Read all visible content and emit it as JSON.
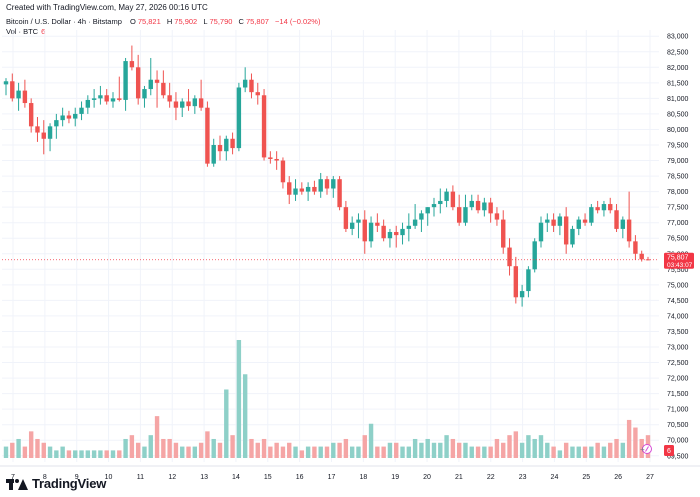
{
  "header": {
    "created_text": "Created with TradingView.com, May 27, 2026 00:16 UTC"
  },
  "legend": {
    "symbol_title": "Bitcoin / U.S. Dollar · 4h · Bitstamp",
    "ohlc": {
      "o_label": "O",
      "o_value": "75,821",
      "h_label": "H",
      "h_value": "75,902",
      "l_label": "L",
      "l_value": "75,790",
      "c_label": "C",
      "c_value": "75,807",
      "change": "−14 (−0.02%)"
    },
    "volume_label": "Vol · BTC",
    "volume_value": "6"
  },
  "brand": {
    "name": "TradingView"
  },
  "colors": {
    "up": "#26a69a",
    "down": "#ef5350",
    "vol_up": "#8ed0c8",
    "vol_down": "#f5a5a5",
    "grid": "#f0f3fa",
    "axis_text": "#131722",
    "price_tag_bg": "#f23645"
  },
  "chart_data": {
    "type": "candlestick",
    "x_tick_labels": [
      "7",
      "8",
      "9",
      "10",
      "11",
      "12",
      "13",
      "14",
      "15",
      "16",
      "17",
      "18",
      "19",
      "20",
      "21",
      "22",
      "23",
      "24",
      "25",
      "26",
      "27"
    ],
    "y_ticks": [
      83000,
      82500,
      82000,
      81500,
      81000,
      80500,
      80000,
      79500,
      79000,
      78500,
      78000,
      77500,
      77000,
      76500,
      76000,
      75500,
      75000,
      74500,
      74000,
      73500,
      73000,
      72500,
      72000,
      71500,
      71000,
      70500,
      70000,
      69500
    ],
    "y_tick_labels": [
      "83,000",
      "82,500",
      "82,000",
      "81,500",
      "81,000",
      "80,500",
      "80,000",
      "79,500",
      "79,000",
      "78,500",
      "78,000",
      "77,500",
      "77,000",
      "76,500",
      "76,000",
      "75,500",
      "75,000",
      "74,500",
      "74,000",
      "73,500",
      "73,000",
      "72,500",
      "72,000",
      "71,500",
      "71,000",
      "70,500",
      "70,000",
      "69,500"
    ],
    "ylim": [
      69300,
      83200
    ],
    "last_price": {
      "price": 75807,
      "label": "75,807",
      "countdown": "03:43:07"
    },
    "volume_last_label": "6",
    "candles": [
      {
        "o": 81450,
        "h": 81650,
        "l": 81100,
        "c": 81550,
        "v": 3
      },
      {
        "o": 81550,
        "h": 81800,
        "l": 80900,
        "c": 81000,
        "v": 4
      },
      {
        "o": 81000,
        "h": 81500,
        "l": 80600,
        "c": 81250,
        "v": 5
      },
      {
        "o": 81250,
        "h": 81600,
        "l": 80700,
        "c": 80850,
        "v": 3
      },
      {
        "o": 80850,
        "h": 81000,
        "l": 79900,
        "c": 80100,
        "v": 7
      },
      {
        "o": 80100,
        "h": 80400,
        "l": 79600,
        "c": 79900,
        "v": 5
      },
      {
        "o": 79900,
        "h": 80300,
        "l": 79200,
        "c": 79700,
        "v": 4
      },
      {
        "o": 79700,
        "h": 80200,
        "l": 79300,
        "c": 80100,
        "v": 3
      },
      {
        "o": 80100,
        "h": 80500,
        "l": 79700,
        "c": 80300,
        "v": 2
      },
      {
        "o": 80300,
        "h": 80700,
        "l": 80100,
        "c": 80450,
        "v": 3
      },
      {
        "o": 80450,
        "h": 80600,
        "l": 80200,
        "c": 80350,
        "v": 2
      },
      {
        "o": 80350,
        "h": 80700,
        "l": 80100,
        "c": 80500,
        "v": 2
      },
      {
        "o": 80500,
        "h": 80900,
        "l": 80300,
        "c": 80700,
        "v": 2
      },
      {
        "o": 80700,
        "h": 81100,
        "l": 80500,
        "c": 80950,
        "v": 2
      },
      {
        "o": 80950,
        "h": 81300,
        "l": 80700,
        "c": 81000,
        "v": 2
      },
      {
        "o": 81000,
        "h": 81400,
        "l": 80800,
        "c": 81100,
        "v": 2
      },
      {
        "o": 81100,
        "h": 81300,
        "l": 80800,
        "c": 80900,
        "v": 2
      },
      {
        "o": 80900,
        "h": 81200,
        "l": 80700,
        "c": 81000,
        "v": 2
      },
      {
        "o": 81000,
        "h": 81700,
        "l": 80900,
        "c": 80950,
        "v": 2
      },
      {
        "o": 80950,
        "h": 82300,
        "l": 80600,
        "c": 82200,
        "v": 5
      },
      {
        "o": 82200,
        "h": 82700,
        "l": 81900,
        "c": 82000,
        "v": 6
      },
      {
        "o": 82000,
        "h": 82400,
        "l": 80800,
        "c": 81000,
        "v": 4
      },
      {
        "o": 81000,
        "h": 81400,
        "l": 80700,
        "c": 81300,
        "v": 3
      },
      {
        "o": 81300,
        "h": 82300,
        "l": 81100,
        "c": 81600,
        "v": 6
      },
      {
        "o": 81600,
        "h": 81900,
        "l": 80700,
        "c": 81500,
        "v": 11
      },
      {
        "o": 81500,
        "h": 81900,
        "l": 81000,
        "c": 81100,
        "v": 5
      },
      {
        "o": 81100,
        "h": 81500,
        "l": 80700,
        "c": 80900,
        "v": 5
      },
      {
        "o": 80900,
        "h": 81200,
        "l": 80300,
        "c": 80700,
        "v": 4
      },
      {
        "o": 80700,
        "h": 81000,
        "l": 80400,
        "c": 80900,
        "v": 3
      },
      {
        "o": 80900,
        "h": 81300,
        "l": 80600,
        "c": 80750,
        "v": 3
      },
      {
        "o": 80750,
        "h": 81100,
        "l": 80500,
        "c": 81000,
        "v": 3
      },
      {
        "o": 81000,
        "h": 81600,
        "l": 80600,
        "c": 80700,
        "v": 4
      },
      {
        "o": 80700,
        "h": 80900,
        "l": 78800,
        "c": 78900,
        "v": 7
      },
      {
        "o": 78900,
        "h": 79700,
        "l": 78800,
        "c": 79500,
        "v": 5
      },
      {
        "o": 79500,
        "h": 79800,
        "l": 79000,
        "c": 79300,
        "v": 4
      },
      {
        "o": 79300,
        "h": 79800,
        "l": 79000,
        "c": 79700,
        "v": 18
      },
      {
        "o": 79700,
        "h": 79900,
        "l": 79200,
        "c": 79400,
        "v": 6
      },
      {
        "o": 79400,
        "h": 81500,
        "l": 79300,
        "c": 81350,
        "v": 31
      },
      {
        "o": 81350,
        "h": 82000,
        "l": 81200,
        "c": 81600,
        "v": 22
      },
      {
        "o": 81600,
        "h": 81800,
        "l": 81000,
        "c": 81200,
        "v": 5
      },
      {
        "o": 81200,
        "h": 81500,
        "l": 80800,
        "c": 81100,
        "v": 4
      },
      {
        "o": 81100,
        "h": 81300,
        "l": 79000,
        "c": 79100,
        "v": 5
      },
      {
        "o": 79100,
        "h": 79300,
        "l": 78900,
        "c": 79050,
        "v": 3
      },
      {
        "o": 79050,
        "h": 79300,
        "l": 78700,
        "c": 79000,
        "v": 4
      },
      {
        "o": 79000,
        "h": 79100,
        "l": 78100,
        "c": 78300,
        "v": 3
      },
      {
        "o": 78300,
        "h": 78500,
        "l": 77600,
        "c": 77900,
        "v": 4
      },
      {
        "o": 77900,
        "h": 78400,
        "l": 77700,
        "c": 78100,
        "v": 3
      },
      {
        "o": 78100,
        "h": 78300,
        "l": 77900,
        "c": 78000,
        "v": 2
      },
      {
        "o": 78000,
        "h": 78300,
        "l": 77700,
        "c": 78150,
        "v": 3
      },
      {
        "o": 78150,
        "h": 78350,
        "l": 77900,
        "c": 78000,
        "v": 3
      },
      {
        "o": 78000,
        "h": 78600,
        "l": 77800,
        "c": 78400,
        "v": 3
      },
      {
        "o": 78400,
        "h": 78500,
        "l": 77900,
        "c": 78100,
        "v": 3
      },
      {
        "o": 78100,
        "h": 78500,
        "l": 77800,
        "c": 78400,
        "v": 4
      },
      {
        "o": 78400,
        "h": 78500,
        "l": 77400,
        "c": 77500,
        "v": 4
      },
      {
        "o": 77500,
        "h": 77700,
        "l": 76700,
        "c": 76800,
        "v": 5
      },
      {
        "o": 76800,
        "h": 77200,
        "l": 76600,
        "c": 77000,
        "v": 3
      },
      {
        "o": 77000,
        "h": 77300,
        "l": 76500,
        "c": 77100,
        "v": 3
      },
      {
        "o": 77100,
        "h": 77400,
        "l": 76000,
        "c": 76400,
        "v": 6
      },
      {
        "o": 76400,
        "h": 77200,
        "l": 76200,
        "c": 77000,
        "v": 9
      },
      {
        "o": 77000,
        "h": 77300,
        "l": 76700,
        "c": 76900,
        "v": 3
      },
      {
        "o": 76900,
        "h": 77100,
        "l": 76400,
        "c": 76500,
        "v": 3
      },
      {
        "o": 76500,
        "h": 76800,
        "l": 76200,
        "c": 76700,
        "v": 4
      },
      {
        "o": 76700,
        "h": 76900,
        "l": 76200,
        "c": 76600,
        "v": 4
      },
      {
        "o": 76600,
        "h": 77000,
        "l": 76300,
        "c": 76800,
        "v": 3
      },
      {
        "o": 76800,
        "h": 77300,
        "l": 76400,
        "c": 76900,
        "v": 3
      },
      {
        "o": 76900,
        "h": 77600,
        "l": 76800,
        "c": 77100,
        "v": 5
      },
      {
        "o": 77100,
        "h": 77400,
        "l": 76700,
        "c": 77300,
        "v": 4
      },
      {
        "o": 77300,
        "h": 77500,
        "l": 76900,
        "c": 77500,
        "v": 5
      },
      {
        "o": 77500,
        "h": 77800,
        "l": 77200,
        "c": 77600,
        "v": 4
      },
      {
        "o": 77600,
        "h": 78100,
        "l": 77300,
        "c": 77700,
        "v": 4
      },
      {
        "o": 77700,
        "h": 78100,
        "l": 77500,
        "c": 78000,
        "v": 6
      },
      {
        "o": 78000,
        "h": 78200,
        "l": 77400,
        "c": 77500,
        "v": 5
      },
      {
        "o": 77500,
        "h": 77900,
        "l": 76900,
        "c": 77000,
        "v": 4
      },
      {
        "o": 77000,
        "h": 77900,
        "l": 76900,
        "c": 77500,
        "v": 4
      },
      {
        "o": 77500,
        "h": 77900,
        "l": 77400,
        "c": 77700,
        "v": 3
      },
      {
        "o": 77700,
        "h": 77900,
        "l": 77300,
        "c": 77400,
        "v": 3
      },
      {
        "o": 77400,
        "h": 77800,
        "l": 77200,
        "c": 77650,
        "v": 3
      },
      {
        "o": 77650,
        "h": 77800,
        "l": 77000,
        "c": 77300,
        "v": 3
      },
      {
        "o": 77300,
        "h": 77500,
        "l": 76900,
        "c": 77100,
        "v": 5
      },
      {
        "o": 77100,
        "h": 77400,
        "l": 76000,
        "c": 76200,
        "v": 4
      },
      {
        "o": 76200,
        "h": 76500,
        "l": 75300,
        "c": 75600,
        "v": 6
      },
      {
        "o": 75600,
        "h": 75900,
        "l": 74400,
        "c": 74600,
        "v": 7
      },
      {
        "o": 74600,
        "h": 75000,
        "l": 74300,
        "c": 74800,
        "v": 4
      },
      {
        "o": 74800,
        "h": 75600,
        "l": 74600,
        "c": 75500,
        "v": 6
      },
      {
        "o": 75500,
        "h": 76500,
        "l": 75400,
        "c": 76400,
        "v": 5
      },
      {
        "o": 76400,
        "h": 77200,
        "l": 76200,
        "c": 77000,
        "v": 6
      },
      {
        "o": 77000,
        "h": 77300,
        "l": 76700,
        "c": 77100,
        "v": 4
      },
      {
        "o": 77100,
        "h": 77300,
        "l": 76700,
        "c": 76900,
        "v": 3
      },
      {
        "o": 76900,
        "h": 77300,
        "l": 76600,
        "c": 77200,
        "v": 2
      },
      {
        "o": 77200,
        "h": 77500,
        "l": 76000,
        "c": 76300,
        "v": 4
      },
      {
        "o": 76300,
        "h": 76900,
        "l": 76200,
        "c": 76800,
        "v": 3
      },
      {
        "o": 76800,
        "h": 77200,
        "l": 76600,
        "c": 77100,
        "v": 3
      },
      {
        "o": 77100,
        "h": 77300,
        "l": 76900,
        "c": 77000,
        "v": 3
      },
      {
        "o": 77000,
        "h": 77600,
        "l": 76900,
        "c": 77500,
        "v": 3
      },
      {
        "o": 77500,
        "h": 77700,
        "l": 77300,
        "c": 77400,
        "v": 4
      },
      {
        "o": 77400,
        "h": 77700,
        "l": 77200,
        "c": 77600,
        "v": 3
      },
      {
        "o": 77600,
        "h": 77800,
        "l": 77300,
        "c": 77400,
        "v": 4
      },
      {
        "o": 77400,
        "h": 77600,
        "l": 76700,
        "c": 76800,
        "v": 5
      },
      {
        "o": 76800,
        "h": 77200,
        "l": 76500,
        "c": 77100,
        "v": 4
      },
      {
        "o": 77100,
        "h": 78000,
        "l": 76200,
        "c": 76400,
        "v": 10
      },
      {
        "o": 76400,
        "h": 76600,
        "l": 75800,
        "c": 76000,
        "v": 8
      },
      {
        "o": 76000,
        "h": 76100,
        "l": 75750,
        "c": 75821,
        "v": 5
      },
      {
        "o": 75821,
        "h": 75902,
        "l": 75790,
        "c": 75807,
        "v": 6
      }
    ],
    "volume_max": 31
  }
}
